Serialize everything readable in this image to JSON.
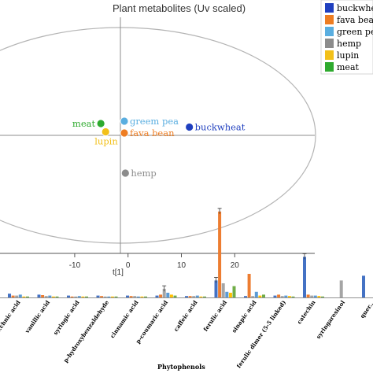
{
  "chart_data": [
    {
      "type": "scatter",
      "title": "Plant metabolites (Uv scaled)",
      "xlabel": "t[1]",
      "xlim": [
        -24,
        35
      ],
      "ylim": [
        -10,
        10
      ],
      "x_ticks": [
        "-10",
        "0",
        "10",
        "20"
      ],
      "x_tick_values": [
        -10,
        0,
        10,
        20
      ],
      "grid": false,
      "legend": "top-right",
      "points": [
        {
          "label": "buckwheat",
          "x": 11.5,
          "y": 0.7,
          "color": "#1f3fbf"
        },
        {
          "label": "fava bean",
          "x": -0.7,
          "y": 0.2,
          "color": "#ee7d22"
        },
        {
          "label": "greem pea",
          "x": -0.7,
          "y": 1.2,
          "color": "#5aaee0"
        },
        {
          "label": "hemp",
          "x": -0.5,
          "y": -3.2,
          "color": "#8c8c8c"
        },
        {
          "label": "lupin",
          "x": -4.2,
          "y": 0.3,
          "color": "#f2c019"
        },
        {
          "label": "meat",
          "x": -5.1,
          "y": 1.0,
          "color": "#2eaa2e"
        }
      ],
      "legend_entries": [
        {
          "label": "buckwheat",
          "color": "#1f3fbf"
        },
        {
          "label": "fava bean",
          "color": "#ee7d22"
        },
        {
          "label": "green pea",
          "color": "#5aaee0"
        },
        {
          "label": "hemp",
          "color": "#8c8c8c"
        },
        {
          "label": "lupin",
          "color": "#f2c019"
        },
        {
          "label": "meat",
          "color": "#2eaa2e"
        }
      ]
    },
    {
      "type": "bar",
      "xlabel": "Phytophenols",
      "ylim": [
        0,
        100
      ],
      "categories": [
        "...chnic acid",
        "vanillic acid",
        "syringic acid",
        "p-hydroxybenzaldehyde",
        "cinnamic acid",
        "p-coumaric acid",
        "caffeic acid",
        "ferulic acid",
        "sinapic acid",
        "ferulic dimer (5-5 linked)",
        "catechin",
        "syringaresinol",
        "quer..."
      ],
      "series": [
        {
          "color": "#4472c4",
          "values": [
            4,
            3,
            2,
            2,
            2,
            2,
            1.5,
            18,
            1.5,
            2,
            43,
            0,
            23
          ]
        },
        {
          "color": "#ed7d31",
          "values": [
            2,
            2.5,
            1,
            1.5,
            1.5,
            3,
            1.5,
            91,
            25,
            3,
            3,
            0,
            0
          ]
        },
        {
          "color": "#a5a5a5",
          "values": [
            2,
            1.5,
            1,
            1,
            1.5,
            9,
            1.5,
            15,
            1.5,
            1.5,
            2,
            18,
            0
          ]
        },
        {
          "color": "#5b9bd5",
          "values": [
            3,
            2,
            1.5,
            1,
            1,
            5,
            2,
            6,
            6,
            2,
            2,
            0,
            0
          ]
        },
        {
          "color": "#ffc000",
          "values": [
            1,
            1,
            1,
            1,
            1,
            3,
            1,
            5,
            2,
            1.5,
            1.5,
            0,
            0
          ]
        },
        {
          "color": "#70ad47",
          "values": [
            1,
            1,
            1,
            1,
            1,
            2,
            1,
            12,
            3,
            1,
            1,
            0,
            0
          ]
        }
      ],
      "error_bars": {
        "ferulic acid": [
          18,
          91
        ],
        "catechin": [
          43
        ],
        "p-coumaric acid": [
          9
        ]
      }
    }
  ]
}
